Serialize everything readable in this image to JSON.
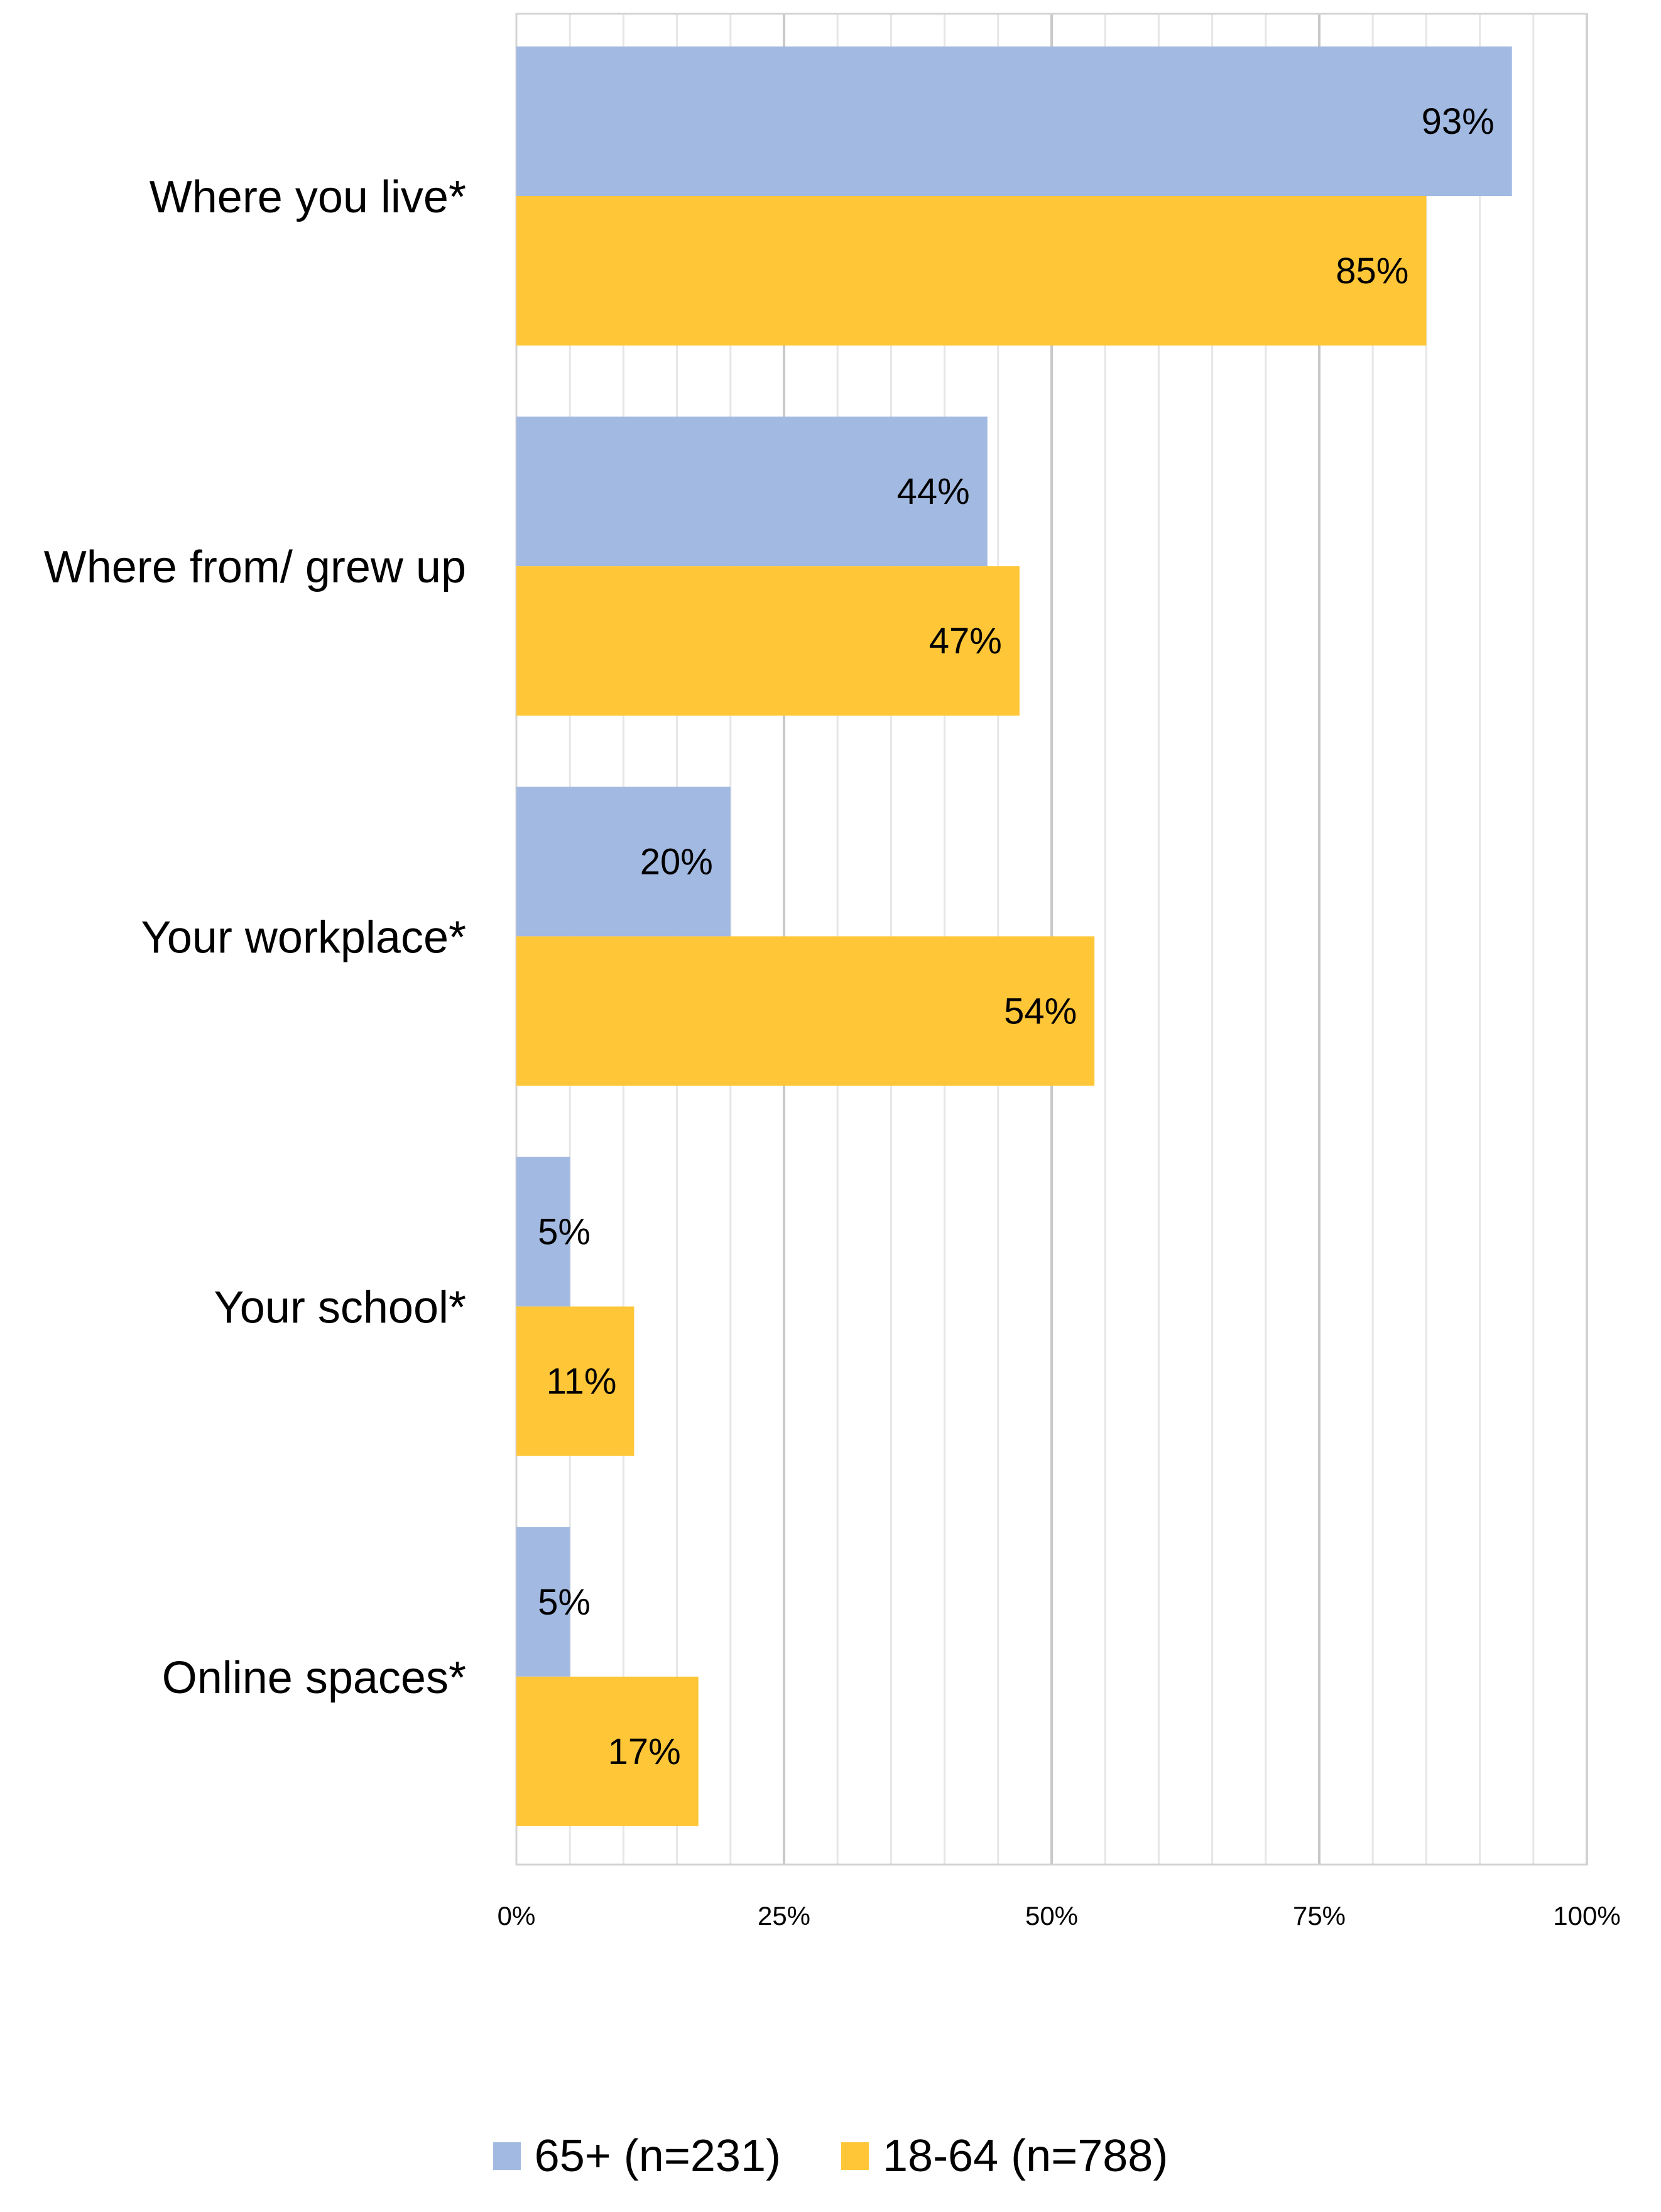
{
  "chart_data": {
    "type": "bar",
    "orientation": "horizontal",
    "categories": [
      "Where you live*",
      "Where from/ grew up",
      "Your workplace*",
      "Your school*",
      "Online spaces*"
    ],
    "series": [
      {
        "name": "65+ (n=231)",
        "values": [
          93,
          44,
          20,
          5,
          5
        ],
        "labels": [
          "93%",
          "44%",
          "20%",
          "5%",
          "5%"
        ],
        "color": "#a2b9e1"
      },
      {
        "name": "18-64 (n=788)",
        "values": [
          85,
          47,
          54,
          11,
          17
        ],
        "labels": [
          "85%",
          "47%",
          "54%",
          "11%",
          "17%"
        ],
        "color": "#ffc637"
      }
    ],
    "x_ticks": [
      "0%",
      "25%",
      "50%",
      "75%",
      "100%"
    ],
    "xlim": [
      0,
      100
    ],
    "grid": true,
    "legend_position": "bottom"
  }
}
